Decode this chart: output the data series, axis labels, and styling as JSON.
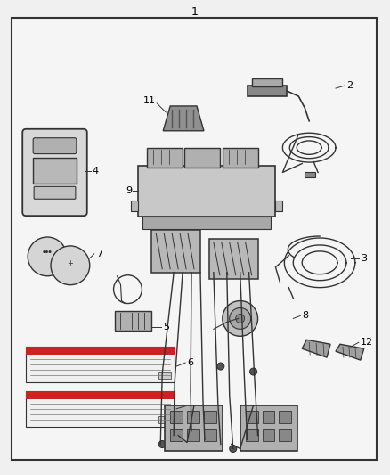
{
  "bg_color": "#f0f0f0",
  "inner_bg": "#f5f5f5",
  "border_color": "#333333",
  "lc": "#333333",
  "title": "1",
  "fig_w": 4.38,
  "fig_h": 5.33,
  "dpi": 100
}
